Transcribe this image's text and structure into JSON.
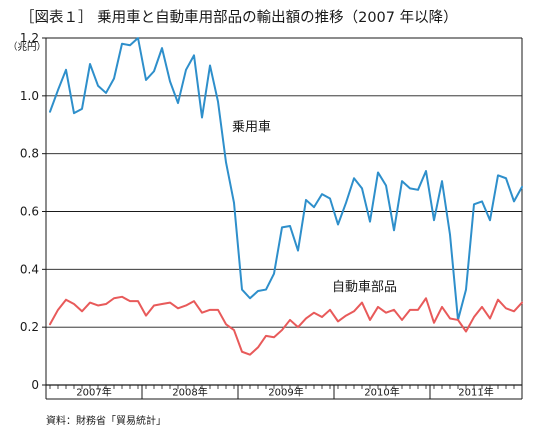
{
  "title": "［図表１］ 乗用車と自動車用部品の輸出額の推移（2007 年以降）",
  "source": "資料：財務省「貿易統計」",
  "chart_data": {
    "type": "line",
    "title": "［図表１］ 乗用車と自動車用部品の輸出額の推移（2007 年以降）",
    "yunit": "（兆円）",
    "ylim": [
      0,
      1.2
    ],
    "yticks": [
      "0",
      "0.2",
      "0.4",
      "0.6",
      "0.8",
      "1.0",
      "1.2"
    ],
    "grid": true,
    "x_year_labels": [
      "2007年",
      "2008年",
      "2009年",
      "2010年",
      "2011年"
    ],
    "x_start": "2007-01",
    "series": [
      {
        "name": "乗用車",
        "color": "#2e8fcb",
        "values": [
          0.945,
          1.02,
          1.09,
          0.94,
          0.955,
          1.11,
          1.035,
          1.01,
          1.06,
          1.18,
          1.175,
          1.2,
          1.055,
          1.085,
          1.165,
          1.05,
          0.975,
          1.09,
          1.14,
          0.925,
          1.105,
          0.98,
          0.77,
          0.63,
          0.33,
          0.3,
          0.325,
          0.33,
          0.385,
          0.545,
          0.55,
          0.465,
          0.64,
          0.615,
          0.66,
          0.645,
          0.555,
          0.63,
          0.715,
          0.68,
          0.565,
          0.735,
          0.69,
          0.535,
          0.705,
          0.68,
          0.675,
          0.74,
          0.57,
          0.705,
          0.52,
          0.225,
          0.33,
          0.625,
          0.635,
          0.57,
          0.725,
          0.715,
          0.635,
          0.685
        ]
      },
      {
        "name": "自動車部品",
        "color": "#e85a5a",
        "values": [
          0.21,
          0.26,
          0.295,
          0.28,
          0.255,
          0.285,
          0.275,
          0.28,
          0.3,
          0.305,
          0.29,
          0.29,
          0.24,
          0.275,
          0.28,
          0.285,
          0.265,
          0.275,
          0.29,
          0.25,
          0.26,
          0.26,
          0.21,
          0.19,
          0.115,
          0.105,
          0.13,
          0.17,
          0.165,
          0.19,
          0.225,
          0.2,
          0.23,
          0.25,
          0.235,
          0.26,
          0.22,
          0.24,
          0.255,
          0.285,
          0.225,
          0.27,
          0.25,
          0.26,
          0.225,
          0.26,
          0.26,
          0.3,
          0.215,
          0.27,
          0.23,
          0.225,
          0.185,
          0.235,
          0.27,
          0.23,
          0.295,
          0.265,
          0.255,
          0.285
        ]
      }
    ]
  }
}
